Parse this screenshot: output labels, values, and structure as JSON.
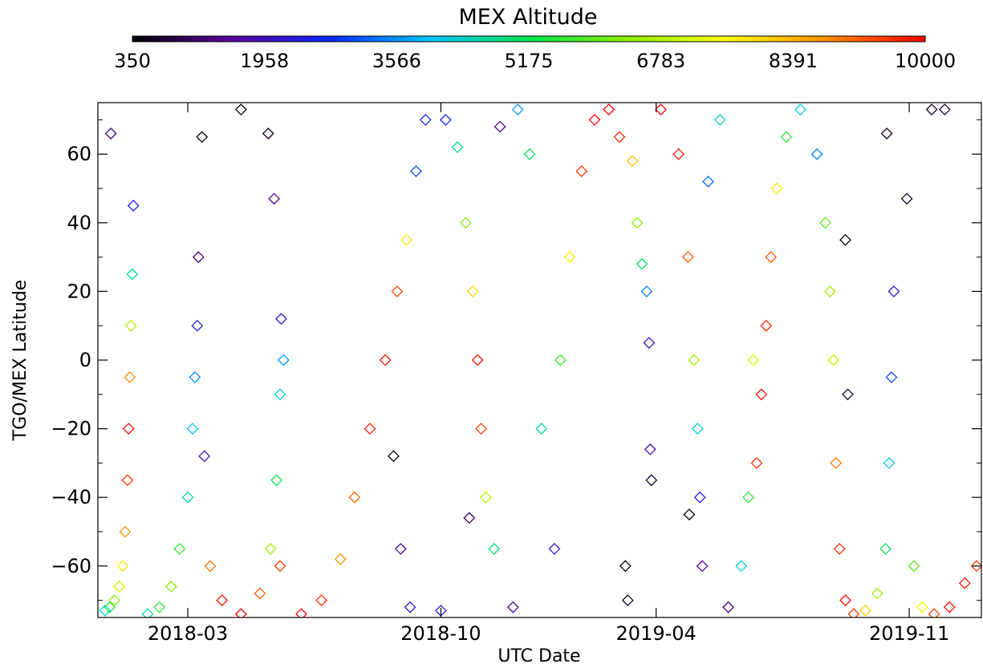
{
  "chart_data": {
    "type": "scatter",
    "marker": "diamond-outline",
    "grid": false,
    "title": "",
    "xlabel": "UTC Date",
    "ylabel": "TGO/MEX Latitude",
    "xlim": [
      "2017-12-15",
      "2020-01-01"
    ],
    "ylim": [
      -75,
      75
    ],
    "x_ticks": [
      "2018-03",
      "2018-10",
      "2019-04",
      "2019-11"
    ],
    "y_ticks": [
      -60,
      -40,
      -20,
      0,
      20,
      40,
      60
    ],
    "colorbar": {
      "title": "MEX Altitude",
      "position": "top",
      "colormap": "rainbow",
      "range": [
        350,
        10000
      ],
      "tick_labels": [
        "350",
        "1958",
        "3566",
        "5175",
        "6783",
        "8391",
        "10000"
      ],
      "colors": [
        "#000000",
        "#5a00a0",
        "#0a28ff",
        "#00c8ff",
        "#00e650",
        "#8cf000",
        "#ffff00",
        "#ff8c00",
        "#ff0000"
      ]
    },
    "series": [
      {
        "points": [
          [
            "2017-12-21",
            -73,
            4300
          ],
          [
            "2017-12-25",
            -72,
            5400
          ],
          [
            "2017-12-29",
            -70,
            6300
          ],
          [
            "2018-01-02",
            -66,
            7000
          ],
          [
            "2018-01-05",
            -60,
            7800
          ],
          [
            "2018-01-07",
            -50,
            8700
          ],
          [
            "2018-01-09",
            -35,
            9600
          ],
          [
            "2018-01-10",
            -20,
            9900
          ],
          [
            "2018-01-11",
            -5,
            8800
          ],
          [
            "2018-01-12",
            10,
            6800
          ],
          [
            "2018-01-13",
            25,
            4600
          ],
          [
            "2018-01-14",
            45,
            2600
          ],
          [
            "2017-12-26",
            66,
            1300
          ],
          [
            "2018-01-26",
            -74,
            4500
          ],
          [
            "2018-02-05",
            -72,
            5600
          ],
          [
            "2018-02-15",
            -66,
            6300
          ],
          [
            "2018-02-22",
            -55,
            5600
          ],
          [
            "2018-03-01",
            -40,
            4600
          ],
          [
            "2018-03-05",
            -20,
            3900
          ],
          [
            "2018-03-07",
            -5,
            3500
          ],
          [
            "2018-03-09",
            10,
            2400
          ],
          [
            "2018-03-10",
            30,
            1200
          ],
          [
            "2018-03-13",
            65,
            400
          ],
          [
            "2018-03-15",
            -28,
            2000
          ],
          [
            "2018-03-20",
            -60,
            9000
          ],
          [
            "2018-03-30",
            -70,
            9800
          ],
          [
            "2018-04-15",
            -74,
            10000
          ],
          [
            "2018-05-01",
            -68,
            9200
          ],
          [
            "2018-05-10",
            -55,
            6500
          ],
          [
            "2018-05-15",
            -35,
            5300
          ],
          [
            "2018-05-18",
            -10,
            4400
          ],
          [
            "2018-05-21",
            0,
            3600
          ],
          [
            "2018-05-19",
            12,
            2300
          ],
          [
            "2018-05-13",
            47,
            1500
          ],
          [
            "2018-04-15",
            73,
            500
          ],
          [
            "2018-05-08",
            66,
            700
          ],
          [
            "2018-05-18",
            -60,
            9500
          ],
          [
            "2018-06-05",
            -74,
            10000
          ],
          [
            "2018-06-22",
            -70,
            9600
          ],
          [
            "2018-07-08",
            -58,
            8700
          ],
          [
            "2018-07-20",
            -40,
            9200
          ],
          [
            "2018-08-02",
            -20,
            9700
          ],
          [
            "2018-08-15",
            0,
            9800
          ],
          [
            "2018-08-25",
            20,
            9400
          ],
          [
            "2018-09-02",
            35,
            7800
          ],
          [
            "2018-09-10",
            55,
            3000
          ],
          [
            "2018-09-18",
            70,
            2600
          ],
          [
            "2018-08-22",
            -28,
            500
          ],
          [
            "2018-08-28",
            -55,
            1800
          ],
          [
            "2018-09-05",
            -72,
            2200
          ],
          [
            "2018-10-01",
            -73,
            2400
          ],
          [
            "2018-10-05",
            70,
            2600
          ],
          [
            "2018-10-15",
            62,
            4800
          ],
          [
            "2018-10-22",
            40,
            6200
          ],
          [
            "2018-10-28",
            20,
            8000
          ],
          [
            "2018-11-01",
            0,
            9900
          ],
          [
            "2018-11-04",
            -20,
            9400
          ],
          [
            "2018-11-08",
            -40,
            6800
          ],
          [
            "2018-11-15",
            -55,
            5000
          ],
          [
            "2018-10-25",
            -46,
            1000
          ],
          [
            "2018-11-20",
            68,
            1500
          ],
          [
            "2018-12-01",
            -72,
            1400
          ],
          [
            "2018-12-05",
            73,
            3600
          ],
          [
            "2018-12-15",
            60,
            5200
          ],
          [
            "2018-12-25",
            -20,
            4600
          ],
          [
            "2019-01-05",
            -55,
            2000
          ],
          [
            "2019-01-10",
            0,
            5700
          ],
          [
            "2019-01-18",
            30,
            7800
          ],
          [
            "2019-01-28",
            55,
            9600
          ],
          [
            "2019-02-08",
            70,
            10000
          ],
          [
            "2019-02-20",
            73,
            10000
          ],
          [
            "2019-03-01",
            65,
            9700
          ],
          [
            "2019-03-06",
            -60,
            400
          ],
          [
            "2019-03-08",
            -70,
            600
          ],
          [
            "2019-03-12",
            58,
            8300
          ],
          [
            "2019-03-16",
            40,
            6300
          ],
          [
            "2019-03-20",
            28,
            5000
          ],
          [
            "2019-03-24",
            20,
            3500
          ],
          [
            "2019-03-26",
            5,
            2000
          ],
          [
            "2019-03-27",
            -26,
            1800
          ],
          [
            "2019-03-28",
            -35,
            700
          ],
          [
            "2019-04-05",
            73,
            10000
          ],
          [
            "2019-04-20",
            60,
            9800
          ],
          [
            "2019-04-28",
            30,
            9200
          ],
          [
            "2019-05-03",
            0,
            6500
          ],
          [
            "2019-05-06",
            -20,
            4300
          ],
          [
            "2019-05-08",
            -40,
            2400
          ],
          [
            "2019-05-10",
            -60,
            1600
          ],
          [
            "2019-04-29",
            -45,
            300
          ],
          [
            "2019-05-15",
            52,
            3200
          ],
          [
            "2019-05-25",
            70,
            4300
          ],
          [
            "2019-06-01",
            -72,
            1200
          ],
          [
            "2019-06-12",
            -60,
            4300
          ],
          [
            "2019-06-18",
            -40,
            5600
          ],
          [
            "2019-06-22",
            0,
            7200
          ],
          [
            "2019-06-25",
            -30,
            9600
          ],
          [
            "2019-06-29",
            -10,
            9900
          ],
          [
            "2019-07-03",
            10,
            9700
          ],
          [
            "2019-07-07",
            30,
            9300
          ],
          [
            "2019-07-12",
            50,
            7800
          ],
          [
            "2019-07-20",
            65,
            5600
          ],
          [
            "2019-08-01",
            73,
            4000
          ],
          [
            "2019-08-15",
            60,
            3400
          ],
          [
            "2019-08-22",
            40,
            6000
          ],
          [
            "2019-08-26",
            20,
            6600
          ],
          [
            "2019-08-29",
            0,
            7000
          ],
          [
            "2019-08-31",
            -30,
            9000
          ],
          [
            "2019-09-03",
            -55,
            9600
          ],
          [
            "2019-09-08",
            -70,
            9900
          ],
          [
            "2019-09-08",
            35,
            400
          ],
          [
            "2019-09-10",
            -10,
            800
          ],
          [
            "2019-09-15",
            -74,
            9500
          ],
          [
            "2019-09-25",
            -73,
            8200
          ],
          [
            "2019-10-05",
            -68,
            6500
          ],
          [
            "2019-10-12",
            -55,
            5200
          ],
          [
            "2019-10-15",
            -30,
            4300
          ],
          [
            "2019-10-17",
            -5,
            3000
          ],
          [
            "2019-10-19",
            20,
            2300
          ],
          [
            "2019-10-13",
            66,
            700
          ],
          [
            "2019-10-30",
            47,
            600
          ],
          [
            "2019-11-05",
            -60,
            6000
          ],
          [
            "2019-11-12",
            -72,
            7500
          ],
          [
            "2019-11-22",
            -74,
            9400
          ],
          [
            "2019-12-05",
            -72,
            9900
          ],
          [
            "2019-12-18",
            -65,
            9800
          ],
          [
            "2019-12-28",
            -60,
            9500
          ],
          [
            "2019-11-20",
            73,
            600
          ],
          [
            "2019-12-01",
            73,
            900
          ]
        ]
      }
    ]
  }
}
